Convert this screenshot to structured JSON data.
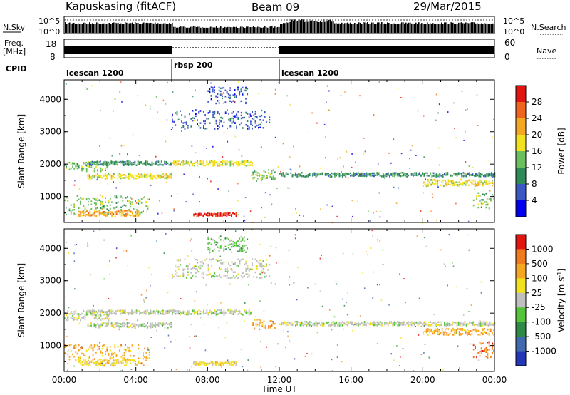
{
  "header": {
    "station": "Kapuskasing (fitACF)",
    "beam": "Beam 09",
    "date": "29/Mar/2015"
  },
  "nsky": {
    "label": "N.Sky",
    "ticks": [
      "10^5",
      "10^0"
    ],
    "right_ticks": [
      "10^5",
      "10^0"
    ],
    "right_label": "N.Search"
  },
  "freq": {
    "label_top": "Freq.",
    "label_bottom": "[MHz]",
    "ticks": [
      "18",
      "8"
    ],
    "right_ticks": [
      "60",
      "0"
    ],
    "right_label": "Nave"
  },
  "cpid": {
    "label": "CPID",
    "segments": [
      {
        "name": "icescan 1200",
        "start_hour": 0,
        "end_hour": 6
      },
      {
        "name": "rbsp 200",
        "start_hour": 6,
        "end_hour": 12
      },
      {
        "name": "icescan 1200",
        "start_hour": 12,
        "end_hour": 24
      }
    ]
  },
  "chart_data": [
    {
      "type": "heatmap",
      "quantity": "power",
      "ylabel": "Slant Range [km]",
      "xlabel": "",
      "xlim": [
        0,
        24
      ],
      "ylim": [
        200,
        4600
      ],
      "yticks": [
        1000,
        2000,
        3000,
        4000
      ],
      "colorbar": {
        "label": "Power [dB]",
        "ticks": [
          "4",
          "8",
          "12",
          "16",
          "20",
          "24",
          "28"
        ],
        "colors": [
          "#0000ee",
          "#3b57c4",
          "#2e8b57",
          "#6bbf5e",
          "#f2e21d",
          "#f5a623",
          "#f0651e",
          "#e3140f"
        ]
      },
      "bands": [
        {
          "x_start": 0.0,
          "x_end": 2.5,
          "y_center": 1950,
          "thickness": 300,
          "level": 3
        },
        {
          "x_start": 1.3,
          "x_end": 6.0,
          "y_center": 1650,
          "thickness": 150,
          "level": 4
        },
        {
          "x_start": 1.2,
          "x_end": 6.0,
          "y_center": 2050,
          "thickness": 120,
          "level": 2
        },
        {
          "x_start": 6.0,
          "x_end": 10.5,
          "y_center": 2050,
          "thickness": 150,
          "level": 4
        },
        {
          "x_start": 10.5,
          "x_end": 11.8,
          "y_center": 1700,
          "thickness": 300,
          "level": 3
        },
        {
          "x_start": 12.0,
          "x_end": 24.0,
          "y_center": 1700,
          "thickness": 120,
          "level": 2
        },
        {
          "x_start": 20.0,
          "x_end": 24.0,
          "y_center": 1450,
          "thickness": 200,
          "level": 4
        },
        {
          "x_start": 0.0,
          "x_end": 4.8,
          "y_center": 750,
          "thickness": 600,
          "level": 3
        },
        {
          "x_start": 0.8,
          "x_end": 4.2,
          "y_center": 500,
          "thickness": 200,
          "level": 5
        },
        {
          "x_start": 7.2,
          "x_end": 9.6,
          "y_center": 470,
          "thickness": 100,
          "level": 7
        },
        {
          "x_start": 6.0,
          "x_end": 11.5,
          "y_center": 3400,
          "thickness": 600,
          "level": 1
        },
        {
          "x_start": 8.0,
          "x_end": 10.2,
          "y_center": 4150,
          "thickness": 500,
          "level": 1
        },
        {
          "x_start": 22.8,
          "x_end": 24.0,
          "y_center": 900,
          "thickness": 500,
          "level": 3
        }
      ]
    },
    {
      "type": "heatmap",
      "quantity": "velocity",
      "ylabel": "Slant Range [km]",
      "xlabel": "Time UT",
      "xlim": [
        0,
        24
      ],
      "ylim": [
        200,
        4600
      ],
      "xticks": [
        "00:00",
        "04:00",
        "08:00",
        "12:00",
        "16:00",
        "20:00",
        "00:00"
      ],
      "yticks": [
        1000,
        2000,
        3000,
        4000
      ],
      "colorbar": {
        "label": "Velocity [m s",
        "label_sup": "-1",
        "label_end": "]",
        "ticks": [
          "1000",
          "500",
          "100",
          "25",
          "-25",
          "-100",
          "-500",
          "-1000"
        ],
        "colors": [
          "#2236b8",
          "#3f6ab0",
          "#2f8a48",
          "#56c43b",
          "#bfbfbf",
          "#f2e21d",
          "#f5a623",
          "#f07a1e",
          "#e3140f"
        ]
      },
      "bands": [
        {
          "x_start": 0.0,
          "x_end": 2.5,
          "y_center": 1950,
          "thickness": 300,
          "level": 4
        },
        {
          "x_start": 1.3,
          "x_end": 6.0,
          "y_center": 1650,
          "thickness": 150,
          "level": 4
        },
        {
          "x_start": 1.2,
          "x_end": 6.0,
          "y_center": 2050,
          "thickness": 120,
          "level": 4
        },
        {
          "x_start": 6.0,
          "x_end": 10.5,
          "y_center": 2050,
          "thickness": 150,
          "level": 4
        },
        {
          "x_start": 10.5,
          "x_end": 11.8,
          "y_center": 1700,
          "thickness": 300,
          "level": 6
        },
        {
          "x_start": 12.0,
          "x_end": 24.0,
          "y_center": 1700,
          "thickness": 120,
          "level": 4
        },
        {
          "x_start": 20.0,
          "x_end": 24.0,
          "y_center": 1450,
          "thickness": 200,
          "level": 6
        },
        {
          "x_start": 0.0,
          "x_end": 4.8,
          "y_center": 750,
          "thickness": 600,
          "level": 6
        },
        {
          "x_start": 0.8,
          "x_end": 4.2,
          "y_center": 500,
          "thickness": 200,
          "level": 5
        },
        {
          "x_start": 7.2,
          "x_end": 9.6,
          "y_center": 470,
          "thickness": 100,
          "level": 5
        },
        {
          "x_start": 6.0,
          "x_end": 11.5,
          "y_center": 3400,
          "thickness": 600,
          "level": 4
        },
        {
          "x_start": 8.0,
          "x_end": 10.2,
          "y_center": 4150,
          "thickness": 500,
          "level": 3
        },
        {
          "x_start": 22.8,
          "x_end": 24.0,
          "y_center": 900,
          "thickness": 500,
          "level": 7
        }
      ]
    }
  ]
}
